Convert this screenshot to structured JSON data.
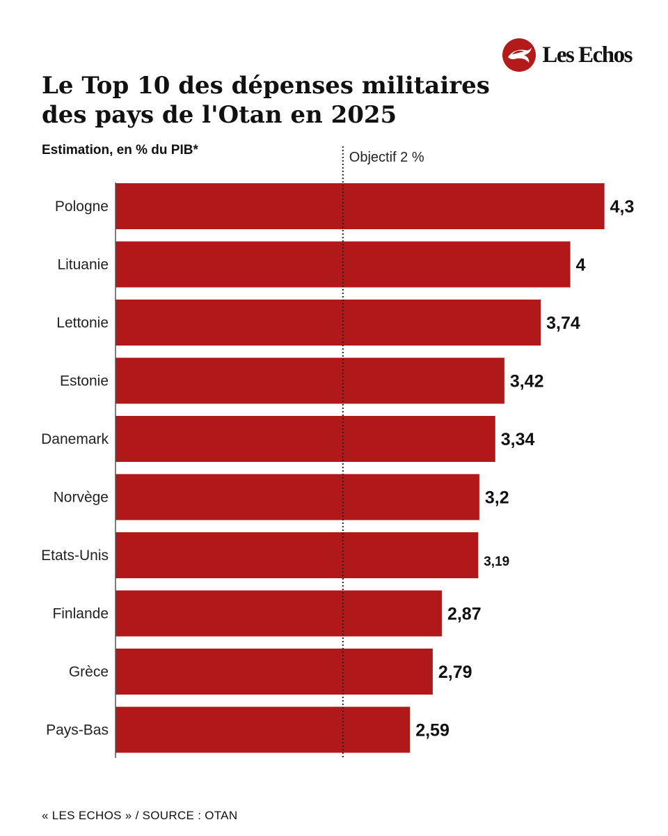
{
  "brand": {
    "name": "Les Echos",
    "logo_icon": "les-echos-logo-icon",
    "logo_color": "#b31b1b"
  },
  "title": "Le Top 10 des dépenses militaires des pays de l'Otan en 2025",
  "subtitle": "Estimation, en % du PIB*",
  "footer": "« LES ECHOS » / SOURCE : OTAN",
  "chart_data": {
    "type": "bar",
    "orientation": "horizontal",
    "categories": [
      "Pologne",
      "Lituanie",
      "Lettonie",
      "Estonie",
      "Danemark",
      "Norvège",
      "Etats-Unis",
      "Finlande",
      "Grèce",
      "Pays-Bas"
    ],
    "values": [
      4.3,
      4,
      3.74,
      3.42,
      3.34,
      3.2,
      3.19,
      2.87,
      2.79,
      2.59
    ],
    "value_labels": [
      "4,3",
      "4",
      "3,74",
      "3,42",
      "3,34",
      "3,2",
      "3,19",
      "2,87",
      "2,79",
      "2,59"
    ],
    "bar_color": "#b0181a",
    "reference_line": {
      "value": 2,
      "label": "Objectif 2 %",
      "style": "dotted"
    },
    "grid": false,
    "xlim": [
      0,
      4.3
    ]
  }
}
